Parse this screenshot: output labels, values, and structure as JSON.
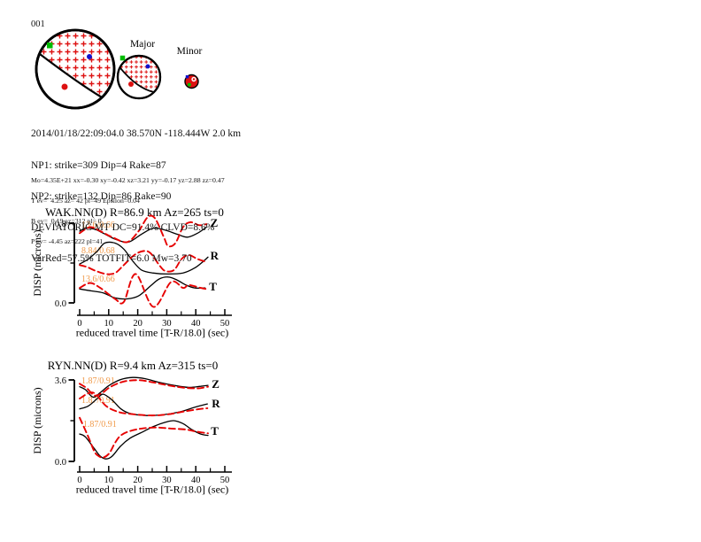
{
  "figure_label": "001",
  "colors": {
    "observed": "#000000",
    "synthetic": "#e60000",
    "annotation": "#f09a4a",
    "stipple": "#dd1111",
    "marker_green": "#00bb00",
    "marker_blue": "#1111cc",
    "marker_red": "#dd1111"
  },
  "beachballs": {
    "major_label": "Major",
    "minor_label": "Minor"
  },
  "event_info": {
    "lines": [
      "2014/01/18/22:09:04.0 38.570N -118.444W 2.0 km",
      "NP1: strike=309 Dip=4 Rake=87",
      "NP2: strike=132 Dip=86 Rake=90",
      "DEVIATORIC MT DC=91.4% CLVD=8.6%",
      "VarRed=57.5% TOTFIT=6.0 Mw=3.70"
    ]
  },
  "mt_details": {
    "lines": [
      "Mo=4.35E+21 xx=-0.30 xy=-0.42 xz=3.21 yy=-0.17 yz=2.88 zz=0.47",
      "T ev=  4.25 az= 42 pl=49 Epsilon=0.04",
      "B ev=  0.19 az=312 pl= 0",
      "P ev= -4.45 az=222 pl=41"
    ]
  },
  "chart_data": [
    {
      "type": "line",
      "station": "WAK.NN",
      "title": "WAK.NN(D) R=86.9 km Az=265 ts=0",
      "xlabel": "reduced travel time [T-R/18.0] (sec)",
      "ylabel": "DISP (microns)",
      "xlim": [
        0,
        50
      ],
      "ylim": [
        0,
        0.8
      ],
      "xticks": [
        0,
        10,
        20,
        30,
        40,
        50
      ],
      "xminorticks": [
        5,
        15,
        25,
        35,
        45
      ],
      "ytick_labels": [
        "0.0",
        "0.8"
      ],
      "grid": false,
      "trace_labels": [
        {
          "text": "Z",
          "x": 45.0,
          "y": 0.765
        },
        {
          "text": "R",
          "x": 45.0,
          "y": 0.436
        },
        {
          "text": "T",
          "x": 44.6,
          "y": 0.124
        }
      ],
      "annotations": [
        {
          "text": "13.6/0.66",
          "x": 0.6,
          "y": 0.755
        },
        {
          "text": "8.84/0.68",
          "x": 0.6,
          "y": 0.497
        },
        {
          "text": "13.6/0.66",
          "x": 0.6,
          "y": 0.213
        }
      ],
      "series": [
        {
          "name": "Z-observed",
          "role": "observed",
          "points": [
            [
              0,
              0.72
            ],
            [
              2,
              0.75
            ],
            [
              5.1,
              0.74
            ],
            [
              8.1,
              0.7
            ],
            [
              12.2,
              0.64
            ],
            [
              16.8,
              0.61
            ],
            [
              21.3,
              0.69
            ],
            [
              25.4,
              0.75
            ],
            [
              29.5,
              0.73
            ],
            [
              33.5,
              0.69
            ],
            [
              37.1,
              0.66
            ],
            [
              40.6,
              0.7
            ],
            [
              43.7,
              0.76
            ]
          ]
        },
        {
          "name": "Z-synthetic",
          "role": "synthetic",
          "points": [
            [
              0,
              0.7
            ],
            [
              3.6,
              0.76
            ],
            [
              7.1,
              0.72
            ],
            [
              11.2,
              0.66
            ],
            [
              16.3,
              0.61
            ],
            [
              20.3,
              0.72
            ],
            [
              23.4,
              0.86
            ],
            [
              25.9,
              0.85
            ],
            [
              29,
              0.66
            ],
            [
              30.5,
              0.57
            ],
            [
              33,
              0.6
            ],
            [
              35.6,
              0.76
            ],
            [
              38.1,
              0.81
            ],
            [
              41.2,
              0.78
            ],
            [
              43.7,
              0.79
            ]
          ]
        },
        {
          "name": "R-observed",
          "role": "observed",
          "points": [
            [
              0,
              0.39
            ],
            [
              3,
              0.44
            ],
            [
              6.1,
              0.52
            ],
            [
              8.6,
              0.6
            ],
            [
              12.2,
              0.6
            ],
            [
              15.2,
              0.54
            ],
            [
              18.3,
              0.42
            ],
            [
              21.3,
              0.33
            ],
            [
              25.4,
              0.3
            ],
            [
              30.5,
              0.29
            ],
            [
              35.6,
              0.3
            ],
            [
              39.6,
              0.35
            ],
            [
              42.7,
              0.42
            ],
            [
              44.2,
              0.46
            ]
          ]
        },
        {
          "name": "R-synthetic",
          "role": "synthetic",
          "points": [
            [
              0,
              0.38
            ],
            [
              2.5,
              0.36
            ],
            [
              5.6,
              0.32
            ],
            [
              9.1,
              0.29
            ],
            [
              12.2,
              0.3
            ],
            [
              15.2,
              0.38
            ],
            [
              18.8,
              0.48
            ],
            [
              21.9,
              0.52
            ],
            [
              24.4,
              0.5
            ],
            [
              27.4,
              0.38
            ],
            [
              29.5,
              0.32
            ],
            [
              32.5,
              0.33
            ],
            [
              35.1,
              0.44
            ],
            [
              37.6,
              0.48
            ],
            [
              40.6,
              0.44
            ],
            [
              43.7,
              0.41
            ]
          ]
        },
        {
          "name": "T-observed",
          "role": "observed",
          "points": [
            [
              0,
              0.14
            ],
            [
              4.1,
              0.12
            ],
            [
              8.1,
              0.1
            ],
            [
              12.2,
              0.05
            ],
            [
              16.3,
              0.04
            ],
            [
              20.3,
              0.07
            ],
            [
              24.4,
              0.17
            ],
            [
              27.4,
              0.24
            ],
            [
              30.5,
              0.26
            ],
            [
              33.5,
              0.23
            ],
            [
              36.6,
              0.18
            ],
            [
              39.6,
              0.15
            ],
            [
              43.2,
              0.15
            ]
          ]
        },
        {
          "name": "T-synthetic",
          "role": "synthetic",
          "points": [
            [
              0,
              0.15
            ],
            [
              3.6,
              0.2
            ],
            [
              7.1,
              0.15
            ],
            [
              12.2,
              0.04
            ],
            [
              15.2,
              0.01
            ],
            [
              19.3,
              0.29
            ],
            [
              25.4,
              -0.04
            ],
            [
              31.5,
              0.21
            ],
            [
              35.6,
              0.15
            ],
            [
              37.6,
              0.18
            ],
            [
              41.7,
              0.15
            ],
            [
              43.7,
              0.14
            ]
          ]
        }
      ]
    },
    {
      "type": "line",
      "station": "RYN.NN",
      "title": "RYN.NN(D) R=9.4 km Az=315 ts=0",
      "xlabel": "reduced travel time [T-R/18.0] (sec)",
      "ylabel": "DISP (microns)",
      "xlim": [
        0,
        50
      ],
      "ylim": [
        0,
        3.6
      ],
      "xticks": [
        0,
        10,
        20,
        30,
        40,
        50
      ],
      "xminorticks": [
        5,
        15,
        25,
        35,
        45
      ],
      "ytick_labels": [
        "0.0",
        "3.6"
      ],
      "grid": false,
      "trace_labels": [
        {
          "text": "Z",
          "x": 45.5,
          "y": 3.25
        },
        {
          "text": "R",
          "x": 45.5,
          "y": 2.39
        },
        {
          "text": "T",
          "x": 45.2,
          "y": 1.17
        }
      ],
      "annotations": [
        {
          "text": "1.87/0.91",
          "x": 0.6,
          "y": 3.44
        },
        {
          "text": "1.87/0.91",
          "x": 0.6,
          "y": 2.58
        },
        {
          "text": "1.87/0.91",
          "x": 1.2,
          "y": 1.53
        }
      ],
      "series": [
        {
          "name": "Z-observed",
          "role": "observed",
          "points": [
            [
              0,
              3.3
            ],
            [
              2,
              3.17
            ],
            [
              4.6,
              2.84
            ],
            [
              7.1,
              3.04
            ],
            [
              10.2,
              3.36
            ],
            [
              14.2,
              3.62
            ],
            [
              18.3,
              3.71
            ],
            [
              22.4,
              3.66
            ],
            [
              27.4,
              3.49
            ],
            [
              32.5,
              3.36
            ],
            [
              37.6,
              3.27
            ],
            [
              41.7,
              3.32
            ],
            [
              44.2,
              3.36
            ]
          ]
        },
        {
          "name": "Z-synthetic",
          "role": "synthetic",
          "points": [
            [
              0,
              3.43
            ],
            [
              2.5,
              3.23
            ],
            [
              5.1,
              2.91
            ],
            [
              7.6,
              3.01
            ],
            [
              10.7,
              3.3
            ],
            [
              15.2,
              3.53
            ],
            [
              20.3,
              3.59
            ],
            [
              25.4,
              3.49
            ],
            [
              30.5,
              3.36
            ],
            [
              35.6,
              3.26
            ],
            [
              40.6,
              3.23
            ],
            [
              44.2,
              3.3
            ]
          ]
        },
        {
          "name": "R-observed",
          "role": "observed",
          "points": [
            [
              0,
              2.32
            ],
            [
              3,
              2.45
            ],
            [
              6.1,
              2.78
            ],
            [
              8.1,
              2.97
            ],
            [
              11.2,
              2.71
            ],
            [
              14.2,
              2.32
            ],
            [
              17.3,
              2.12
            ],
            [
              22.4,
              2.03
            ],
            [
              28.5,
              2.06
            ],
            [
              34.6,
              2.19
            ],
            [
              39.6,
              2.39
            ],
            [
              44,
              2.54
            ]
          ]
        },
        {
          "name": "R-synthetic",
          "role": "synthetic",
          "points": [
            [
              0,
              2.78
            ],
            [
              4.6,
              3.04
            ],
            [
              9.1,
              2.45
            ],
            [
              13.2,
              2.19
            ],
            [
              17.3,
              2.1
            ],
            [
              24.4,
              2.03
            ],
            [
              30.5,
              2.08
            ],
            [
              36.6,
              2.22
            ],
            [
              41.7,
              2.32
            ],
            [
              44,
              2.35
            ]
          ]
        },
        {
          "name": "T-observed",
          "role": "observed",
          "points": [
            [
              0,
              1.21
            ],
            [
              2,
              1.08
            ],
            [
              5.1,
              0.56
            ],
            [
              7.1,
              0.23
            ],
            [
              9.1,
              0.11
            ],
            [
              11.2,
              0.23
            ],
            [
              14.2,
              0.69
            ],
            [
              17.3,
              1.02
            ],
            [
              21.3,
              1.28
            ],
            [
              25.4,
              1.54
            ],
            [
              29.5,
              1.73
            ],
            [
              32.5,
              1.8
            ],
            [
              35.6,
              1.67
            ],
            [
              38.6,
              1.41
            ],
            [
              41.7,
              1.21
            ],
            [
              44.2,
              1.15
            ]
          ]
        },
        {
          "name": "T-synthetic",
          "role": "synthetic",
          "points": [
            [
              0,
              1.93
            ],
            [
              3,
              1.08
            ],
            [
              5.1,
              0.43
            ],
            [
              6.6,
              0.23
            ],
            [
              8.1,
              0.17
            ],
            [
              10.2,
              0.36
            ],
            [
              12.2,
              0.82
            ],
            [
              14.2,
              1.15
            ],
            [
              17.3,
              1.34
            ],
            [
              21.3,
              1.45
            ],
            [
              26.4,
              1.5
            ],
            [
              31.5,
              1.45
            ],
            [
              36.6,
              1.41
            ],
            [
              40.1,
              1.32
            ],
            [
              44.2,
              1.24
            ]
          ]
        }
      ]
    }
  ]
}
